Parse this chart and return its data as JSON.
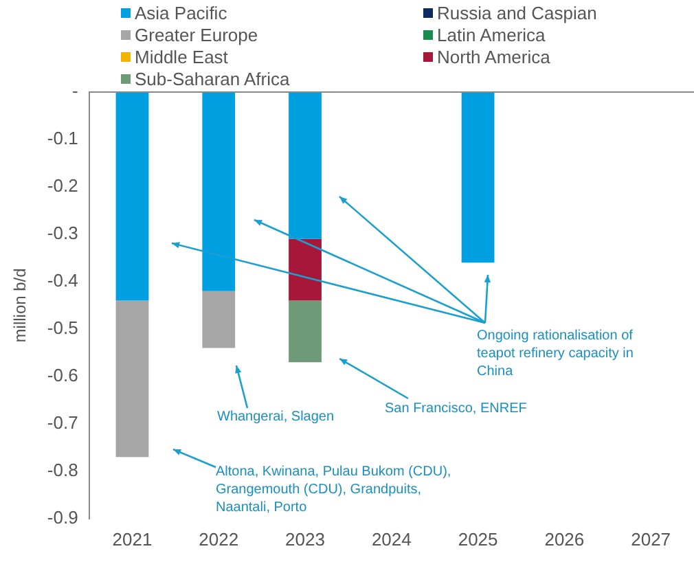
{
  "chart_data": {
    "type": "bar",
    "stacked": true,
    "ylabel": "million b/d",
    "categories": [
      "2021",
      "2022",
      "2023",
      "2024",
      "2025",
      "2026",
      "2027"
    ],
    "series": [
      {
        "name": "Asia Pacific",
        "color": "#00a0e0",
        "values": [
          -0.44,
          -0.42,
          -0.31,
          null,
          -0.36,
          null,
          null
        ]
      },
      {
        "name": "Russia and Caspian",
        "color": "#0f2a5e",
        "values": [
          null,
          null,
          null,
          null,
          null,
          null,
          null
        ]
      },
      {
        "name": "Greater Europe",
        "color": "#a6a6a6",
        "values": [
          -0.33,
          -0.12,
          null,
          null,
          null,
          null,
          null
        ]
      },
      {
        "name": "Latin America",
        "color": "#1a8c4e",
        "values": [
          null,
          null,
          null,
          null,
          null,
          null,
          null
        ]
      },
      {
        "name": "Middle East",
        "color": "#f0b400",
        "values": [
          null,
          null,
          null,
          null,
          null,
          null,
          null
        ]
      },
      {
        "name": "North America",
        "color": "#a6173a",
        "values": [
          null,
          null,
          -0.13,
          null,
          null,
          null,
          null
        ]
      },
      {
        "name": "Sub-Saharan Africa",
        "color": "#6e9a78",
        "values": [
          null,
          null,
          -0.13,
          null,
          null,
          null,
          null
        ]
      }
    ],
    "ylim": [
      -0.9,
      0
    ],
    "yticks": [
      {
        "value": 0,
        "label": "-"
      },
      -0.1,
      -0.2,
      -0.3,
      -0.4,
      -0.5,
      -0.6,
      -0.7,
      -0.8,
      -0.9
    ],
    "grid": false,
    "legend": "top",
    "annotations": [
      "Ongoing rationalisation of teapot refinery capacity in China",
      "San Francisco, ENREF",
      "Whangerai, Slagen",
      "Altona, Kwinana, Pulau Bukom (CDU), Grangemouth (CDU), Grandpuits, Naantali, Porto"
    ]
  }
}
